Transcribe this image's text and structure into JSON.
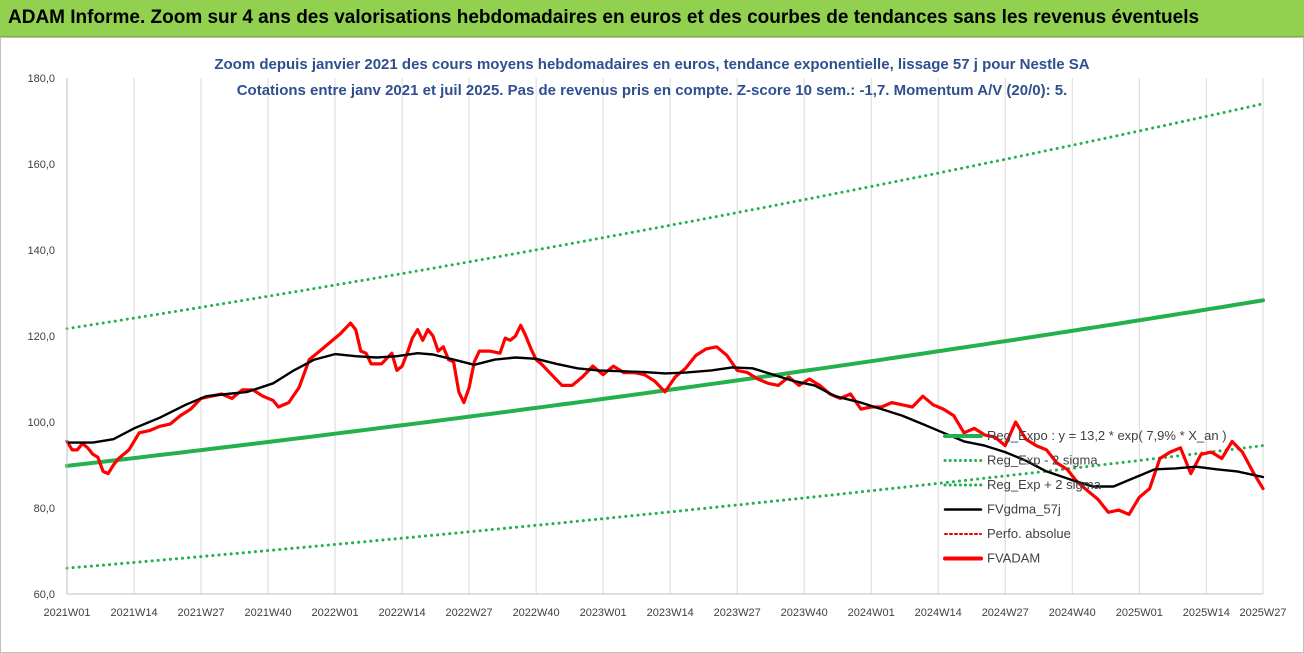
{
  "banner": {
    "title": "ADAM Informe. Zoom sur 4 ans des valorisations hebdomadaires en euros et des courbes de tendances sans les revenus éventuels"
  },
  "colors": {
    "banner_bg": "#92d050",
    "title_text": "#2f4f8f",
    "trend": "#22b14c",
    "sigma": "#22b14c",
    "fvgdma": "#000000",
    "perfo": "#e00000",
    "fvadam": "#ff0000"
  },
  "chart_data": {
    "type": "line",
    "title": "Zoom depuis janvier 2021 des cours moyens hebdomadaires en euros, tendance exponentielle, lissage 57 j pour Nestle SA",
    "subtitle": "Cotations entre janv 2021 et juil 2025. Pas de revenus pris en compte. Z-score 10 sem.: -1,7. Momentum A/V (20/0): 5.",
    "xlabel": "",
    "ylabel": "",
    "ylim": [
      60,
      180
    ],
    "y_ticks": [
      "60,0",
      "80,0",
      "100,0",
      "120,0",
      "140,0",
      "160,0",
      "180,0"
    ],
    "x_ticks": [
      "2021W01",
      "2021W14",
      "2021W27",
      "2021W40",
      "2022W01",
      "2022W14",
      "2022W27",
      "2022W40",
      "2023W01",
      "2023W14",
      "2023W27",
      "2023W40",
      "2024W01",
      "2024W14",
      "2024W27",
      "2024W40",
      "2025W01",
      "2025W14",
      "2025W27"
    ],
    "grid": "vertical",
    "legend_position": "right-inside",
    "legend": [
      "Reg_Expo : y = 13,2 * exp( 7,9% * X_an )",
      "Reg_Exp - 2 sigma",
      "Reg_Exp + 2 sigma",
      "FVgdma_57j",
      "Perfo. absolue",
      "FVADAM"
    ],
    "series": [
      {
        "name": "Reg_Expo : y = 13,2 * exp( 7,9% * X_an )",
        "style": "solid-thick",
        "x": [
          "2021W01",
          "2025W27"
        ],
        "y_start": 89.8,
        "y_end": 128.3
      },
      {
        "name": "Reg_Exp - 2 sigma",
        "style": "dotted",
        "x": [
          "2021W01",
          "2025W27"
        ],
        "y_start": 66.0,
        "y_end": 94.5
      },
      {
        "name": "Reg_Exp + 2 sigma",
        "style": "dotted",
        "x": [
          "2021W01",
          "2025W27"
        ],
        "y_start": 121.7,
        "y_end": 174.0
      },
      {
        "name": "FVgdma_57j",
        "style": "solid",
        "points": [
          [
            0,
            95.2
          ],
          [
            5,
            95.2
          ],
          [
            9,
            96.0
          ],
          [
            13,
            98.5
          ],
          [
            18,
            101.0
          ],
          [
            23,
            104.0
          ],
          [
            27,
            106.0
          ],
          [
            31,
            106.5
          ],
          [
            35,
            107.0
          ],
          [
            40,
            109.0
          ],
          [
            44,
            112.0
          ],
          [
            48,
            114.5
          ],
          [
            52,
            115.8
          ],
          [
            56,
            115.3
          ],
          [
            60,
            115.0
          ],
          [
            64,
            115.3
          ],
          [
            68,
            116.0
          ],
          [
            71,
            115.7
          ],
          [
            75,
            114.5
          ],
          [
            79,
            113.3
          ],
          [
            83,
            114.5
          ],
          [
            87,
            115.0
          ],
          [
            91,
            114.7
          ],
          [
            95,
            113.5
          ],
          [
            99,
            112.5
          ],
          [
            103,
            112.0
          ],
          [
            108,
            111.8
          ],
          [
            112,
            111.6
          ],
          [
            116,
            111.3
          ],
          [
            120,
            111.5
          ],
          [
            125,
            112.0
          ],
          [
            129,
            112.7
          ],
          [
            133,
            112.5
          ],
          [
            137,
            111.0
          ],
          [
            141,
            109.5
          ],
          [
            145,
            108.5
          ],
          [
            149,
            106.0
          ],
          [
            154,
            104.5
          ],
          [
            158,
            103.0
          ],
          [
            162,
            101.5
          ],
          [
            166,
            99.5
          ],
          [
            170,
            97.5
          ],
          [
            174,
            95.5
          ],
          [
            178,
            94.5
          ],
          [
            182,
            93.0
          ],
          [
            186,
            91.0
          ],
          [
            190,
            88.5
          ],
          [
            195,
            86.5
          ],
          [
            199,
            85.0
          ],
          [
            203,
            85.0
          ],
          [
            207,
            87.0
          ],
          [
            211,
            89.0
          ],
          [
            215,
            89.2
          ],
          [
            219,
            89.6
          ],
          [
            223,
            89.0
          ],
          [
            227,
            88.5
          ],
          [
            232,
            87.2
          ]
        ]
      },
      {
        "name": "FVADAM",
        "style": "solid-thick",
        "points": [
          [
            0,
            95.5
          ],
          [
            1,
            93.5
          ],
          [
            2,
            93.5
          ],
          [
            3,
            95.0
          ],
          [
            4,
            94.0
          ],
          [
            5,
            92.5
          ],
          [
            6,
            91.8
          ],
          [
            7,
            88.5
          ],
          [
            8,
            88.0
          ],
          [
            9,
            90.0
          ],
          [
            10,
            91.5
          ],
          [
            12,
            93.5
          ],
          [
            14,
            97.5
          ],
          [
            16,
            98.0
          ],
          [
            18,
            99.0
          ],
          [
            20,
            99.5
          ],
          [
            22,
            101.5
          ],
          [
            24,
            103.0
          ],
          [
            26,
            105.5
          ],
          [
            28,
            106.0
          ],
          [
            30,
            106.5
          ],
          [
            32,
            105.5
          ],
          [
            34,
            107.5
          ],
          [
            36,
            107.5
          ],
          [
            38,
            106.0
          ],
          [
            40,
            105.0
          ],
          [
            41,
            103.5
          ],
          [
            43,
            104.5
          ],
          [
            45,
            108.0
          ],
          [
            47,
            114.5
          ],
          [
            49,
            116.5
          ],
          [
            51,
            118.5
          ],
          [
            53,
            120.5
          ],
          [
            55,
            123.0
          ],
          [
            56,
            121.5
          ],
          [
            57,
            116.5
          ],
          [
            58,
            116.0
          ],
          [
            59,
            113.5
          ],
          [
            61,
            113.5
          ],
          [
            63,
            116.0
          ],
          [
            64,
            112.0
          ],
          [
            65,
            113.0
          ],
          [
            66,
            116.0
          ],
          [
            67,
            119.5
          ],
          [
            68,
            121.5
          ],
          [
            69,
            119.0
          ],
          [
            70,
            121.5
          ],
          [
            71,
            120.0
          ],
          [
            72,
            116.5
          ],
          [
            73,
            117.5
          ],
          [
            74,
            114.5
          ],
          [
            75,
            114.0
          ],
          [
            76,
            107.0
          ],
          [
            77,
            104.5
          ],
          [
            78,
            108.0
          ],
          [
            79,
            114.0
          ],
          [
            80,
            116.5
          ],
          [
            82,
            116.5
          ],
          [
            84,
            116.0
          ],
          [
            85,
            119.5
          ],
          [
            86,
            119.0
          ],
          [
            87,
            120.0
          ],
          [
            88,
            122.5
          ],
          [
            89,
            120.0
          ],
          [
            90,
            117.0
          ],
          [
            91,
            114.5
          ],
          [
            92,
            113.5
          ],
          [
            94,
            111.0
          ],
          [
            96,
            108.5
          ],
          [
            98,
            108.5
          ],
          [
            100,
            110.5
          ],
          [
            102,
            113.0
          ],
          [
            104,
            111.0
          ],
          [
            106,
            113.0
          ],
          [
            108,
            111.5
          ],
          [
            110,
            111.5
          ],
          [
            112,
            111.0
          ],
          [
            114,
            109.5
          ],
          [
            116,
            107.0
          ],
          [
            118,
            110.5
          ],
          [
            120,
            112.5
          ],
          [
            122,
            115.5
          ],
          [
            124,
            117.0
          ],
          [
            126,
            117.5
          ],
          [
            128,
            115.5
          ],
          [
            130,
            112.0
          ],
          [
            132,
            111.5
          ],
          [
            134,
            110.0
          ],
          [
            136,
            109.0
          ],
          [
            138,
            108.5
          ],
          [
            140,
            110.5
          ],
          [
            142,
            108.5
          ],
          [
            144,
            110.0
          ],
          [
            146,
            108.5
          ],
          [
            148,
            106.5
          ],
          [
            150,
            105.5
          ],
          [
            152,
            106.5
          ],
          [
            154,
            103.0
          ],
          [
            156,
            103.5
          ],
          [
            158,
            103.5
          ],
          [
            160,
            104.5
          ],
          [
            162,
            104.0
          ],
          [
            164,
            103.5
          ],
          [
            166,
            106.0
          ],
          [
            168,
            104.0
          ],
          [
            170,
            103.0
          ],
          [
            172,
            101.5
          ],
          [
            174,
            97.5
          ],
          [
            176,
            98.5
          ],
          [
            178,
            97.0
          ],
          [
            180,
            96.5
          ],
          [
            182,
            94.5
          ],
          [
            184,
            100.0
          ],
          [
            186,
            96.0
          ],
          [
            188,
            94.5
          ],
          [
            190,
            93.5
          ],
          [
            192,
            90.5
          ],
          [
            194,
            89.0
          ],
          [
            196,
            86.0
          ],
          [
            198,
            84.0
          ],
          [
            200,
            82.0
          ],
          [
            202,
            79.0
          ],
          [
            204,
            79.5
          ],
          [
            206,
            78.5
          ],
          [
            208,
            82.5
          ],
          [
            210,
            84.5
          ],
          [
            212,
            91.5
          ],
          [
            214,
            93.0
          ],
          [
            216,
            94.0
          ],
          [
            218,
            88.0
          ],
          [
            220,
            92.5
          ],
          [
            222,
            93.0
          ],
          [
            224,
            91.5
          ],
          [
            226,
            95.5
          ],
          [
            228,
            93.0
          ],
          [
            230,
            88.5
          ],
          [
            232,
            84.5
          ]
        ]
      }
    ]
  }
}
